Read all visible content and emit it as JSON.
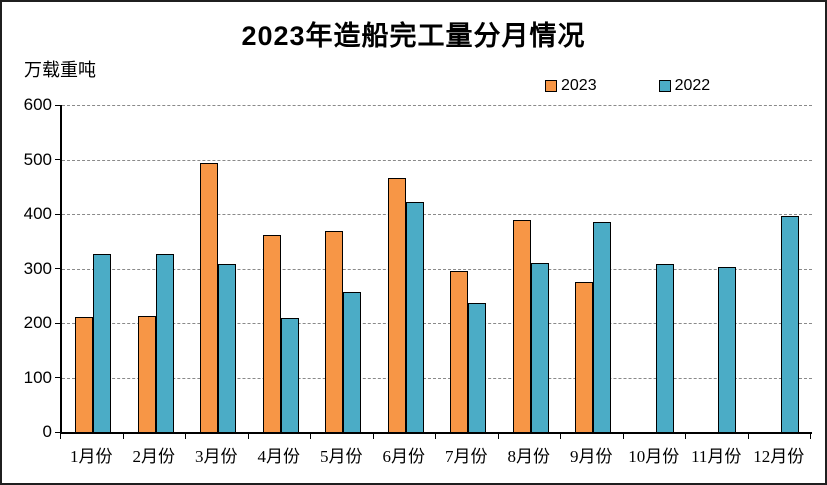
{
  "title": "2023年造船完工量分月情况",
  "y_axis": {
    "unit_label": "万载重吨",
    "ticks": [
      600,
      500,
      400,
      300,
      200,
      100,
      0
    ]
  },
  "chart_data": {
    "type": "bar",
    "title": "2023年造船完工量分月情况",
    "xlabel": "",
    "ylabel": "万载重吨",
    "ylim": [
      0,
      600
    ],
    "ytick_interval": 100,
    "grid": "horizontal-dashed",
    "legend_position": "top-right",
    "categories": [
      "1月份",
      "2月份",
      "3月份",
      "4月份",
      "5月份",
      "6月份",
      "7月份",
      "8月份",
      "9月份",
      "10月份",
      "11月份",
      "12月份"
    ],
    "series": [
      {
        "name": "2023",
        "color": "#F79646",
        "values": [
          211,
          212,
          493,
          362,
          368,
          466,
          296,
          389,
          276,
          null,
          null,
          null
        ]
      },
      {
        "name": "2022",
        "color": "#4BACC6",
        "values": [
          326,
          327,
          308,
          210,
          257,
          422,
          236,
          310,
          386,
          308,
          303,
          396
        ]
      }
    ],
    "styles": {
      "bar_outline_color": "#000000",
      "grid_color": "#8a8a8a",
      "axis_color": "#000000",
      "background": "#ffffff"
    }
  }
}
